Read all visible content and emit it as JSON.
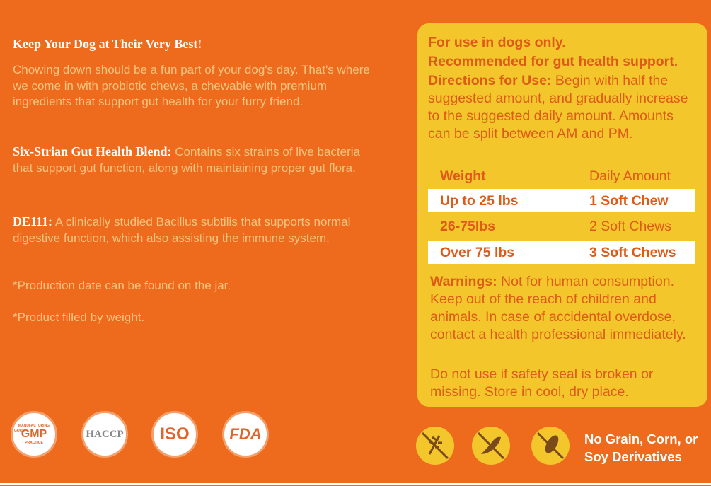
{
  "left": {
    "title": "Keep Your Dog at Their Very Best!",
    "intro": "Chowing down should be a fun part of your dog's day. That's where we come in with probiotic chews, a chewable with premium ingredients that support gut health for your furry friend.",
    "sections": [
      {
        "heading": "Six-Strian Gut Health Blend:",
        "text": "Contains six strains of live bacteria that support gut function, along with maintaining proper gut flora."
      },
      {
        "heading": "DE111:",
        "text": "A clinically studied Bacillus subtilis that supports normal digestive function, which also assisting the immune system."
      }
    ],
    "notes": [
      "*Production date can be found on the jar.",
      "*Product filled by weight."
    ]
  },
  "badges": {
    "gmp_ring": [
      "GOOD",
      "MANUFACTURING",
      "PRACTICE"
    ],
    "labels": [
      "GMP",
      "HACCP",
      "ISO",
      "FDA"
    ]
  },
  "panel": {
    "lines": [
      "For use in dogs only.",
      "Recommended for gut health support."
    ],
    "directions": {
      "heading": "Directions for Use:",
      "text": "Begin with half the suggested amount, and gradually increase to the suggested daily amount. Amounts can be split between AM and PM."
    },
    "table": {
      "header": [
        "Weight",
        "Daily Amount"
      ],
      "rows": [
        [
          "Up to 25 lbs",
          "1 Soft Chew"
        ],
        [
          "26-75lbs",
          "2 Soft Chews"
        ],
        [
          "Over 75 lbs",
          "3 Soft Chews"
        ]
      ]
    },
    "warnings": {
      "heading": "Warnings:",
      "text": "Not for human consumption. Keep out of the reach of children and animals. In case of accidental overdose, contact a health professional immediately."
    },
    "storage": "Do not use if safety seal is broken or missing. Store in cool, dry place."
  },
  "free_from": [
    "No Grain, Corn, or",
    "Soy Derivatives"
  ]
}
